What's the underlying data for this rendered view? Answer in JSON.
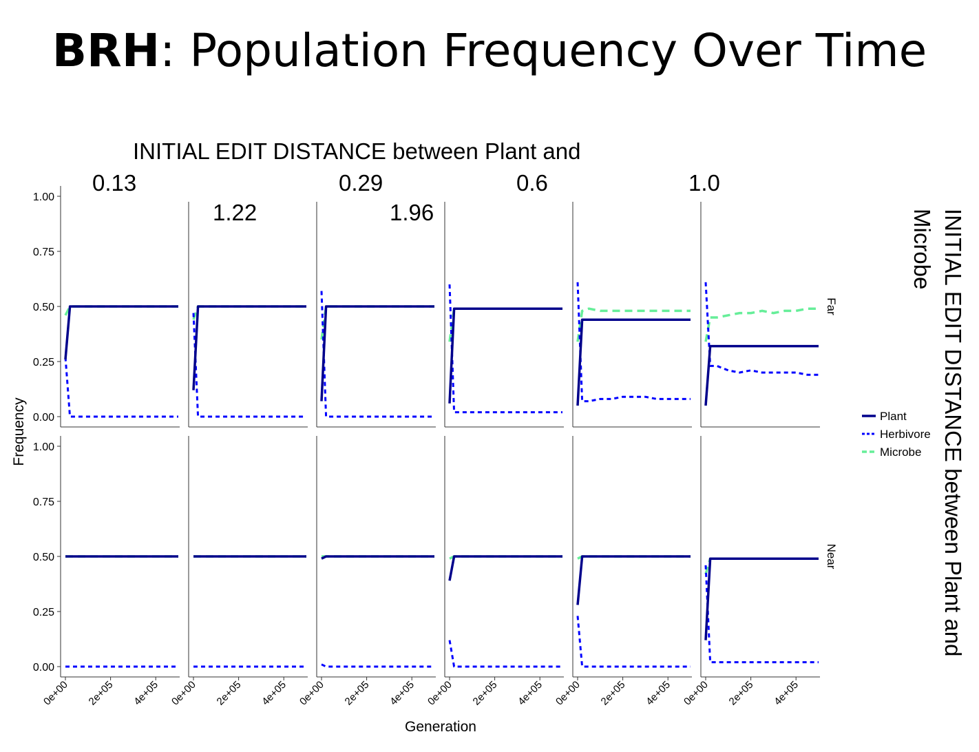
{
  "slide": {
    "title_bold": "BRH",
    "title_rest": ": Population Frequency Over Time"
  },
  "chart_data": {
    "type": "line",
    "title": "",
    "xlabel": "Generation",
    "ylabel": "Frequency",
    "xlim": [
      0,
      500000
    ],
    "ylim": [
      0,
      1
    ],
    "x_ticks": [
      "0e+00",
      "2e+05",
      "4e+05"
    ],
    "y_ticks": [
      "0.00",
      "0.25",
      "0.50",
      "0.75",
      "1.00"
    ],
    "grid": false,
    "legend_position": "right",
    "facet_col_title_lines": [
      "INITIAL EDIT DISTANCE between Plant and",
      "Microbe"
    ],
    "facet_col_labels": [
      "0.13",
      "0.29",
      "0.6",
      "1.0",
      "1.22",
      "1.96"
    ],
    "facet_row_title_lines": [
      "INITIAL EDIT DISTANCE between Plant and",
      "Microbe"
    ],
    "facet_row_labels": [
      "Far",
      "Near"
    ],
    "legend": [
      {
        "name": "Plant",
        "color": "#00008b",
        "dash": "solid"
      },
      {
        "name": "Herbivore",
        "color": "#0000ff",
        "dash": "dotted"
      },
      {
        "name": "Microbe",
        "color": "#66ee99",
        "dash": "dashed"
      }
    ],
    "x": [
      0,
      20000,
      50000,
      100000,
      150000,
      200000,
      250000,
      300000,
      350000,
      400000,
      450000,
      500000
    ],
    "panels": [
      {
        "row": "Far",
        "col": "0.13",
        "series": [
          {
            "name": "Plant",
            "values": [
              0.26,
              0.5,
              0.5,
              0.5,
              0.5,
              0.5,
              0.5,
              0.5,
              0.5,
              0.5,
              0.5,
              0.5
            ]
          },
          {
            "name": "Herbivore",
            "values": [
              0.27,
              0.0,
              0.0,
              0.0,
              0.0,
              0.0,
              0.0,
              0.0,
              0.0,
              0.0,
              0.0,
              0.0
            ]
          },
          {
            "name": "Microbe",
            "values": [
              0.46,
              0.5,
              0.5,
              0.5,
              0.5,
              0.5,
              0.5,
              0.5,
              0.5,
              0.5,
              0.5,
              0.5
            ]
          }
        ]
      },
      {
        "row": "Far",
        "col": "0.29",
        "series": [
          {
            "name": "Plant",
            "values": [
              0.12,
              0.5,
              0.5,
              0.5,
              0.5,
              0.5,
              0.5,
              0.5,
              0.5,
              0.5,
              0.5,
              0.5
            ]
          },
          {
            "name": "Herbivore",
            "values": [
              0.47,
              0.0,
              0.0,
              0.0,
              0.0,
              0.0,
              0.0,
              0.0,
              0.0,
              0.0,
              0.0,
              0.0
            ]
          },
          {
            "name": "Microbe",
            "values": [
              0.44,
              0.5,
              0.5,
              0.5,
              0.5,
              0.5,
              0.5,
              0.5,
              0.5,
              0.5,
              0.5,
              0.5
            ]
          }
        ]
      },
      {
        "row": "Far",
        "col": "0.6",
        "series": [
          {
            "name": "Plant",
            "values": [
              0.07,
              0.5,
              0.5,
              0.5,
              0.5,
              0.5,
              0.5,
              0.5,
              0.5,
              0.5,
              0.5,
              0.5
            ]
          },
          {
            "name": "Herbivore",
            "values": [
              0.57,
              0.0,
              0.0,
              0.0,
              0.0,
              0.0,
              0.0,
              0.0,
              0.0,
              0.0,
              0.0,
              0.0
            ]
          },
          {
            "name": "Microbe",
            "values": [
              0.35,
              0.5,
              0.5,
              0.5,
              0.5,
              0.5,
              0.5,
              0.5,
              0.5,
              0.5,
              0.5,
              0.5
            ]
          }
        ]
      },
      {
        "row": "Far",
        "col": "1.0",
        "series": [
          {
            "name": "Plant",
            "values": [
              0.06,
              0.49,
              0.49,
              0.49,
              0.49,
              0.49,
              0.49,
              0.49,
              0.49,
              0.49,
              0.49,
              0.49
            ]
          },
          {
            "name": "Herbivore",
            "values": [
              0.6,
              0.02,
              0.02,
              0.02,
              0.02,
              0.02,
              0.02,
              0.02,
              0.02,
              0.02,
              0.02,
              0.02
            ]
          },
          {
            "name": "Microbe",
            "values": [
              0.34,
              0.49,
              0.49,
              0.49,
              0.49,
              0.49,
              0.49,
              0.49,
              0.49,
              0.49,
              0.49,
              0.49
            ]
          }
        ]
      },
      {
        "row": "Far",
        "col": "1.22",
        "series": [
          {
            "name": "Plant",
            "values": [
              0.05,
              0.44,
              0.44,
              0.44,
              0.44,
              0.44,
              0.44,
              0.44,
              0.44,
              0.44,
              0.44,
              0.44
            ]
          },
          {
            "name": "Herbivore",
            "values": [
              0.61,
              0.07,
              0.07,
              0.08,
              0.08,
              0.09,
              0.09,
              0.09,
              0.08,
              0.08,
              0.08,
              0.08
            ]
          },
          {
            "name": "Microbe",
            "values": [
              0.34,
              0.48,
              0.49,
              0.48,
              0.48,
              0.48,
              0.48,
              0.48,
              0.48,
              0.48,
              0.48,
              0.48
            ]
          }
        ]
      },
      {
        "row": "Far",
        "col": "1.96",
        "series": [
          {
            "name": "Plant",
            "values": [
              0.05,
              0.32,
              0.32,
              0.32,
              0.32,
              0.32,
              0.32,
              0.32,
              0.32,
              0.32,
              0.32,
              0.32
            ]
          },
          {
            "name": "Herbivore",
            "values": [
              0.61,
              0.23,
              0.23,
              0.21,
              0.2,
              0.21,
              0.2,
              0.2,
              0.2,
              0.2,
              0.19,
              0.19
            ]
          },
          {
            "name": "Microbe",
            "values": [
              0.34,
              0.45,
              0.45,
              0.46,
              0.47,
              0.47,
              0.48,
              0.47,
              0.48,
              0.48,
              0.49,
              0.49
            ]
          }
        ]
      },
      {
        "row": "Near",
        "col": "0.13",
        "series": [
          {
            "name": "Plant",
            "values": [
              0.5,
              0.5,
              0.5,
              0.5,
              0.5,
              0.5,
              0.5,
              0.5,
              0.5,
              0.5,
              0.5,
              0.5
            ]
          },
          {
            "name": "Herbivore",
            "values": [
              0.0,
              0.0,
              0.0,
              0.0,
              0.0,
              0.0,
              0.0,
              0.0,
              0.0,
              0.0,
              0.0,
              0.0
            ]
          },
          {
            "name": "Microbe",
            "values": [
              0.5,
              0.5,
              0.5,
              0.5,
              0.5,
              0.5,
              0.5,
              0.5,
              0.5,
              0.5,
              0.5,
              0.5
            ]
          }
        ]
      },
      {
        "row": "Near",
        "col": "0.29",
        "series": [
          {
            "name": "Plant",
            "values": [
              0.5,
              0.5,
              0.5,
              0.5,
              0.5,
              0.5,
              0.5,
              0.5,
              0.5,
              0.5,
              0.5,
              0.5
            ]
          },
          {
            "name": "Herbivore",
            "values": [
              0.0,
              0.0,
              0.0,
              0.0,
              0.0,
              0.0,
              0.0,
              0.0,
              0.0,
              0.0,
              0.0,
              0.0
            ]
          },
          {
            "name": "Microbe",
            "values": [
              0.5,
              0.5,
              0.5,
              0.5,
              0.5,
              0.5,
              0.5,
              0.5,
              0.5,
              0.5,
              0.5,
              0.5
            ]
          }
        ]
      },
      {
        "row": "Near",
        "col": "0.6",
        "series": [
          {
            "name": "Plant",
            "values": [
              0.49,
              0.5,
              0.5,
              0.5,
              0.5,
              0.5,
              0.5,
              0.5,
              0.5,
              0.5,
              0.5,
              0.5
            ]
          },
          {
            "name": "Herbivore",
            "values": [
              0.01,
              0.0,
              0.0,
              0.0,
              0.0,
              0.0,
              0.0,
              0.0,
              0.0,
              0.0,
              0.0,
              0.0
            ]
          },
          {
            "name": "Microbe",
            "values": [
              0.5,
              0.5,
              0.5,
              0.5,
              0.5,
              0.5,
              0.5,
              0.5,
              0.5,
              0.5,
              0.5,
              0.5
            ]
          }
        ]
      },
      {
        "row": "Near",
        "col": "1.0",
        "series": [
          {
            "name": "Plant",
            "values": [
              0.39,
              0.5,
              0.5,
              0.5,
              0.5,
              0.5,
              0.5,
              0.5,
              0.5,
              0.5,
              0.5,
              0.5
            ]
          },
          {
            "name": "Herbivore",
            "values": [
              0.12,
              0.0,
              0.0,
              0.0,
              0.0,
              0.0,
              0.0,
              0.0,
              0.0,
              0.0,
              0.0,
              0.0
            ]
          },
          {
            "name": "Microbe",
            "values": [
              0.49,
              0.5,
              0.5,
              0.5,
              0.5,
              0.5,
              0.5,
              0.5,
              0.5,
              0.5,
              0.5,
              0.5
            ]
          }
        ]
      },
      {
        "row": "Near",
        "col": "1.22",
        "series": [
          {
            "name": "Plant",
            "values": [
              0.28,
              0.5,
              0.5,
              0.5,
              0.5,
              0.5,
              0.5,
              0.5,
              0.5,
              0.5,
              0.5,
              0.5
            ]
          },
          {
            "name": "Herbivore",
            "values": [
              0.23,
              0.0,
              0.0,
              0.0,
              0.0,
              0.0,
              0.0,
              0.0,
              0.0,
              0.0,
              0.0,
              0.0
            ]
          },
          {
            "name": "Microbe",
            "values": [
              0.49,
              0.5,
              0.5,
              0.5,
              0.5,
              0.5,
              0.5,
              0.5,
              0.5,
              0.5,
              0.5,
              0.5
            ]
          }
        ]
      },
      {
        "row": "Near",
        "col": "1.96",
        "series": [
          {
            "name": "Plant",
            "values": [
              0.12,
              0.49,
              0.49,
              0.49,
              0.49,
              0.49,
              0.49,
              0.49,
              0.49,
              0.49,
              0.49,
              0.49
            ]
          },
          {
            "name": "Herbivore",
            "values": [
              0.46,
              0.02,
              0.02,
              0.02,
              0.02,
              0.02,
              0.02,
              0.02,
              0.02,
              0.02,
              0.02,
              0.02
            ]
          },
          {
            "name": "Microbe",
            "values": [
              0.42,
              0.49,
              0.49,
              0.49,
              0.49,
              0.49,
              0.49,
              0.49,
              0.49,
              0.49,
              0.49,
              0.49
            ]
          }
        ]
      }
    ]
  }
}
